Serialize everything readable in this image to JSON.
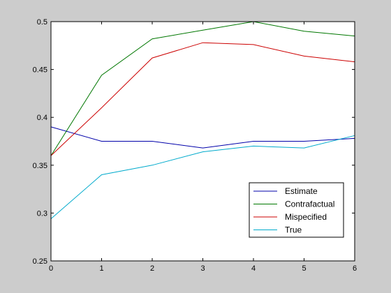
{
  "chart_data": {
    "type": "line",
    "title": "",
    "xlabel": "",
    "ylabel": "",
    "x": [
      0,
      1,
      2,
      3,
      4,
      5,
      6
    ],
    "xlim": [
      0,
      6
    ],
    "ylim": [
      0.25,
      0.5
    ],
    "xticks": [
      "0",
      "1",
      "2",
      "3",
      "4",
      "5",
      "6"
    ],
    "yticks": [
      "0.25",
      "0.3",
      "0.35",
      "0.4",
      "0.45",
      "0.5"
    ],
    "xtick_values": [
      0,
      1,
      2,
      3,
      4,
      5,
      6
    ],
    "ytick_values": [
      0.25,
      0.3,
      0.35,
      0.4,
      0.45,
      0.5
    ],
    "grid": false,
    "legend_position": "bottom-right",
    "series": [
      {
        "name": "Estimate",
        "color": "#0000aa",
        "values": [
          0.39,
          0.375,
          0.375,
          0.368,
          0.375,
          0.375,
          0.378
        ]
      },
      {
        "name": "Contrafactual",
        "color": "#007700",
        "values": [
          0.36,
          0.444,
          0.482,
          0.491,
          0.5,
          0.49,
          0.485
        ]
      },
      {
        "name": "Mispecified",
        "color": "#cc0000",
        "values": [
          0.36,
          0.41,
          0.462,
          0.478,
          0.476,
          0.464,
          0.458
        ]
      },
      {
        "name": "True",
        "color": "#00aacc",
        "values": [
          0.294,
          0.34,
          0.35,
          0.364,
          0.37,
          0.368,
          0.381
        ]
      }
    ]
  }
}
